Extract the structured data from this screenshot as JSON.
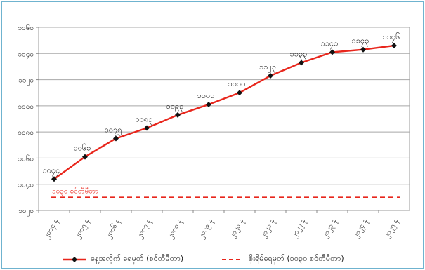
{
  "chart_data": {
    "type": "line",
    "title": "",
    "xlabel": "",
    "ylabel": "",
    "categories": [
      "၂၀၁၄ ခု",
      "၂၀၁၅ ခု",
      "၂၀၁၆ ခု",
      "၂၀၁၇ ခု",
      "၂၀၁၈ ခု",
      "၂၀၁၉ ခု",
      "၂၀၂၀ ခု",
      "၂၀၂၁ ခု",
      "၂၀၂၂ ခု",
      "၂၀၂၃ ခု",
      "၂၀၂၄ ခု",
      "၂၀၂၅ ခု"
    ],
    "y_ticks": [
      {
        "value": 1020,
        "label": "၁၀၂၀"
      },
      {
        "value": 1040,
        "label": "၁၀၄၀"
      },
      {
        "value": 1060,
        "label": "၁၀၆၀"
      },
      {
        "value": 1080,
        "label": "၁၀၈၀"
      },
      {
        "value": 1100,
        "label": "၁၁၀၀"
      },
      {
        "value": 1120,
        "label": "၁၁၂၀"
      },
      {
        "value": 1140,
        "label": "၁၁၄၀"
      },
      {
        "value": 1160,
        "label": "၁၁၆၀"
      }
    ],
    "ylim": [
      1020,
      1160
    ],
    "series": [
      {
        "name": "နေ့အလိုက် ရေမှတ် (စင်တီမီတာ)",
        "color": "#e8261c",
        "marker": "diamond",
        "values": [
          1044,
          1061,
          1075,
          1083,
          1093,
          1101,
          1110,
          1123,
          1133,
          1141,
          1143,
          1146
        ],
        "labels": [
          "၁၀၄၄",
          "၁၀၆၁",
          "၁၀၇၅",
          "၁၀၈၃",
          "၁၀၉၃",
          "၁၁၀၁",
          "၁၁၁၀",
          "၁၁၂၃",
          "၁၁၃၃",
          "၁၁၄၁",
          "၁၁၄၃",
          "၁၁၄၆"
        ]
      }
    ],
    "reference_line": {
      "name": "စိုးရိမ်ရေမှတ် (၁၀၃၀ စင်တီမီတာ)",
      "value": 1030,
      "label": "၁၀၃၀ စင်တီမီတာ",
      "color": "#e8261c",
      "style": "dashed"
    },
    "grid": true,
    "legend_position": "bottom"
  }
}
